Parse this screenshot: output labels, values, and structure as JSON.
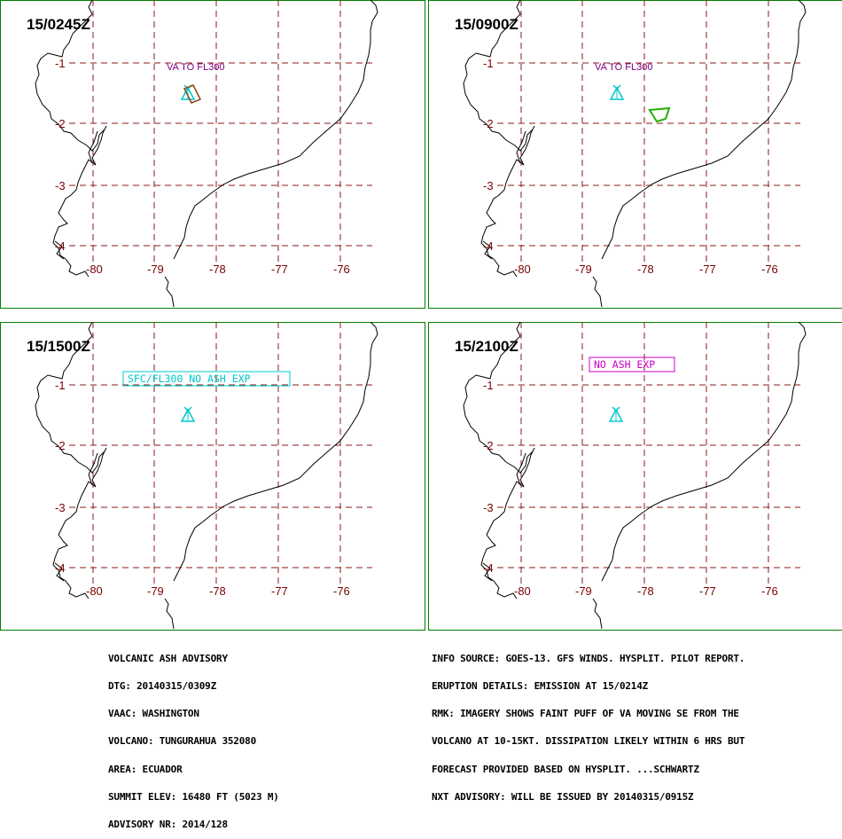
{
  "panels": [
    {
      "time": "15/0245Z",
      "label": "VA TO FL300",
      "label_style": "plain",
      "label_color": "#800080",
      "polygon_color": "#8b4513",
      "has_polygon": true,
      "polygon": "vol"
    },
    {
      "time": "15/0900Z",
      "label": "VA TO FL300",
      "label_style": "plain",
      "label_color": "#800080",
      "polygon_color": "#22b000",
      "has_polygon": true,
      "polygon": "se"
    },
    {
      "time": "15/1500Z",
      "label": "SFC/FL300 NO ASH EXP",
      "label_style": "box",
      "label_color": "#00c8c8",
      "has_polygon": false
    },
    {
      "time": "15/2100Z",
      "label": "NO ASH EXP",
      "label_style": "box",
      "label_color": "#cc00cc",
      "has_polygon": false
    }
  ],
  "map": {
    "lat_labels": [
      "-1",
      "-2",
      "-3",
      "-4"
    ],
    "lon_labels": [
      "-80",
      "-79",
      "-78",
      "-77",
      "-76"
    ],
    "grid_color": "#8b1a1a",
    "volcano_color": "#00c8c8",
    "coast_color": "#000000",
    "frame_color": "#008000"
  },
  "advisory": [
    "VOLCANIC ASH ADVISORY",
    "DTG: 20140315/0309Z",
    "VAAC: WASHINGTON",
    "VOLCANO: TUNGURAHUA 352080",
    "AREA: ECUADOR",
    "SUMMIT ELEV: 16480 FT (5023 M)",
    "ADVISORY NR: 2014/128"
  ],
  "remarks": [
    "INFO SOURCE: GOES-13. GFS WINDS. HYSPLIT. PILOT REPORT.",
    "ERUPTION DETAILS: EMISSION AT 15/0214Z",
    "RMK: IMAGERY SHOWS FAINT PUFF OF VA MOVING SE FROM THE",
    "VOLCANO AT 10-15KT. DISSIPATION LIKELY WITHIN 6 HRS BUT",
    "FORECAST PROVIDED BASED ON HYSPLIT. ...SCHWARTZ",
    "NXT ADVISORY: WILL BE ISSUED BY 20140315/0915Z"
  ]
}
